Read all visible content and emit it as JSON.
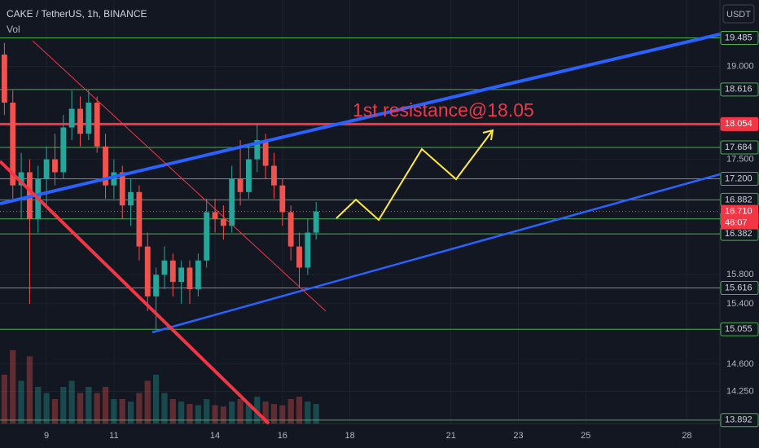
{
  "chart_data": {
    "type": "candlestick",
    "title": "CAKE / TetherUS, 1h, BINANCE",
    "volume_label": "Vol",
    "currency": "USDT",
    "annotation": "1st resistance@18.05",
    "countdown": "46:07",
    "x": [
      7.75,
      8,
      8.25,
      8.5,
      8.75,
      9,
      9.25,
      9.5,
      9.75,
      10,
      10.25,
      10.5,
      10.75,
      11,
      11.25,
      11.5,
      11.75,
      12,
      12.25,
      12.5,
      12.75,
      13,
      13.25,
      13.5,
      13.75,
      14,
      14.25,
      14.5,
      14.75,
      15,
      15.25,
      15.5,
      15.75,
      16,
      16.25,
      16.5,
      16.75,
      17
    ],
    "open": [
      19.2,
      18.4,
      17.1,
      17.3,
      16.6,
      17.2,
      17.5,
      17.3,
      18.0,
      18.3,
      17.9,
      18.4,
      17.7,
      17.1,
      17.3,
      16.8,
      17.0,
      16.2,
      15.5,
      15.8,
      16.0,
      15.7,
      15.9,
      15.6,
      16.0,
      16.7,
      16.6,
      16.5,
      17.2,
      17.0,
      17.5,
      17.8,
      17.4,
      17.1,
      16.7,
      16.2,
      15.9,
      16.4
    ],
    "high": [
      19.4,
      18.6,
      17.6,
      17.5,
      17.4,
      17.7,
      17.9,
      18.2,
      18.6,
      18.5,
      18.6,
      18.5,
      17.9,
      17.5,
      17.4,
      17.2,
      17.1,
      16.4,
      15.9,
      16.2,
      16.1,
      16.0,
      16.0,
      16.1,
      16.9,
      16.9,
      16.8,
      17.4,
      17.8,
      17.7,
      18.05,
      17.9,
      17.6,
      17.2,
      16.8,
      16.4,
      16.6,
      16.85
    ],
    "low": [
      18.2,
      16.9,
      16.6,
      15.4,
      16.4,
      16.8,
      17.1,
      17.2,
      17.8,
      17.7,
      17.8,
      17.6,
      16.9,
      16.9,
      16.6,
      16.5,
      16.0,
      15.3,
      15.06,
      15.6,
      15.5,
      15.4,
      15.4,
      15.5,
      15.9,
      16.4,
      16.3,
      16.4,
      16.8,
      16.9,
      17.3,
      17.2,
      16.9,
      16.5,
      16.0,
      15.62,
      15.8,
      16.3
    ],
    "close": [
      18.4,
      17.1,
      17.3,
      16.6,
      17.2,
      17.5,
      17.3,
      18.0,
      18.3,
      17.9,
      18.4,
      17.7,
      17.1,
      17.3,
      16.8,
      17.0,
      16.2,
      15.5,
      15.8,
      16.0,
      15.7,
      15.9,
      15.6,
      16.0,
      16.7,
      16.6,
      16.5,
      17.2,
      17.0,
      17.5,
      17.8,
      17.4,
      17.1,
      16.7,
      16.2,
      15.9,
      16.4,
      16.71
    ],
    "volume": [
      40,
      60,
      35,
      55,
      30,
      25,
      20,
      30,
      35,
      25,
      30,
      25,
      30,
      20,
      20,
      18,
      25,
      35,
      40,
      25,
      20,
      18,
      16,
      15,
      20,
      15,
      14,
      18,
      20,
      16,
      22,
      18,
      16,
      15,
      20,
      22,
      18,
      16
    ],
    "up_color": "#26a69a",
    "down_color": "#ef5350",
    "xlim": [
      7.62,
      28.98
    ],
    "xticks": [
      9,
      11,
      14,
      16,
      18,
      21,
      23,
      25,
      28
    ],
    "ylim": [
      13.85,
      20.15
    ],
    "log_scale": true,
    "yticks": [
      {
        "value": 19,
        "label": "19.000"
      },
      {
        "value": 17.5,
        "label": "17.500"
      },
      {
        "value": 15.8,
        "label": "15.800"
      },
      {
        "value": 15.4,
        "label": "15.400"
      },
      {
        "value": 14.6,
        "label": "14.600"
      },
      {
        "value": 14.25,
        "label": "14.250"
      }
    ],
    "levels": [
      19.485,
      18.616,
      17.684,
      {
        "value": 17.2,
        "label": "17.200"
      },
      16.882,
      16.601,
      16.382,
      15.616,
      15.055,
      13.892
    ],
    "level_color": "#4caf50",
    "resistance": 18.054,
    "resistance_color": "#f23645",
    "last_price": {
      "value": 16.71,
      "label": "16.710"
    }
  }
}
